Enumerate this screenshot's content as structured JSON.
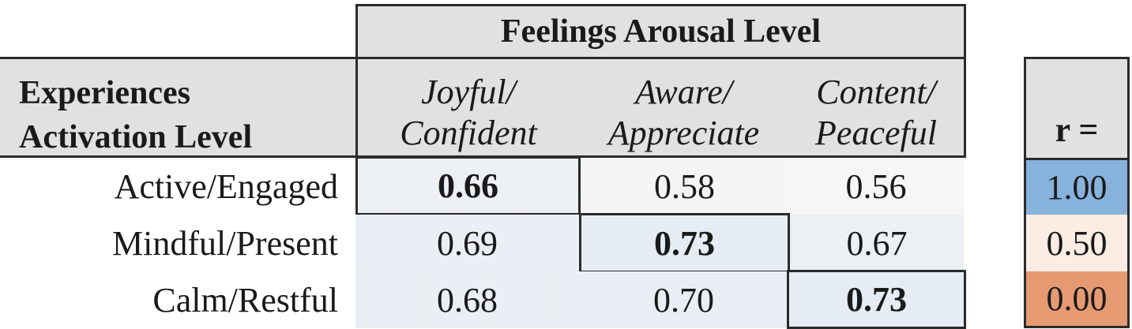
{
  "chart_data": {
    "type": "heatmap",
    "title": "Feelings Arousal Level",
    "corner_label": [
      "Experiences",
      "Activation Level"
    ],
    "columns": [
      [
        "Joyful/",
        "Confident"
      ],
      [
        "Aware/",
        "Appreciate"
      ],
      [
        "Content/",
        "Peaceful"
      ]
    ],
    "rows": [
      "Active/Engaged",
      "Mindful/Present",
      "Calm/Restful"
    ],
    "values": [
      [
        "0.66",
        "0.58",
        "0.56"
      ],
      [
        "0.69",
        "0.73",
        "0.67"
      ],
      [
        "0.68",
        "0.70",
        "0.73"
      ]
    ],
    "highlighted_diagonal": true,
    "legend": {
      "title": "r =",
      "stops": [
        {
          "label": "1.00",
          "color": "#86b2dc"
        },
        {
          "label": "0.50",
          "color": "#fbede4"
        },
        {
          "label": "0.00",
          "color": "#e69a72"
        }
      ]
    },
    "colors": {
      "high": "#86b2dc",
      "mid": "#fbf4ef",
      "low": "#e69a72",
      "header": "#e1e1e1"
    }
  }
}
